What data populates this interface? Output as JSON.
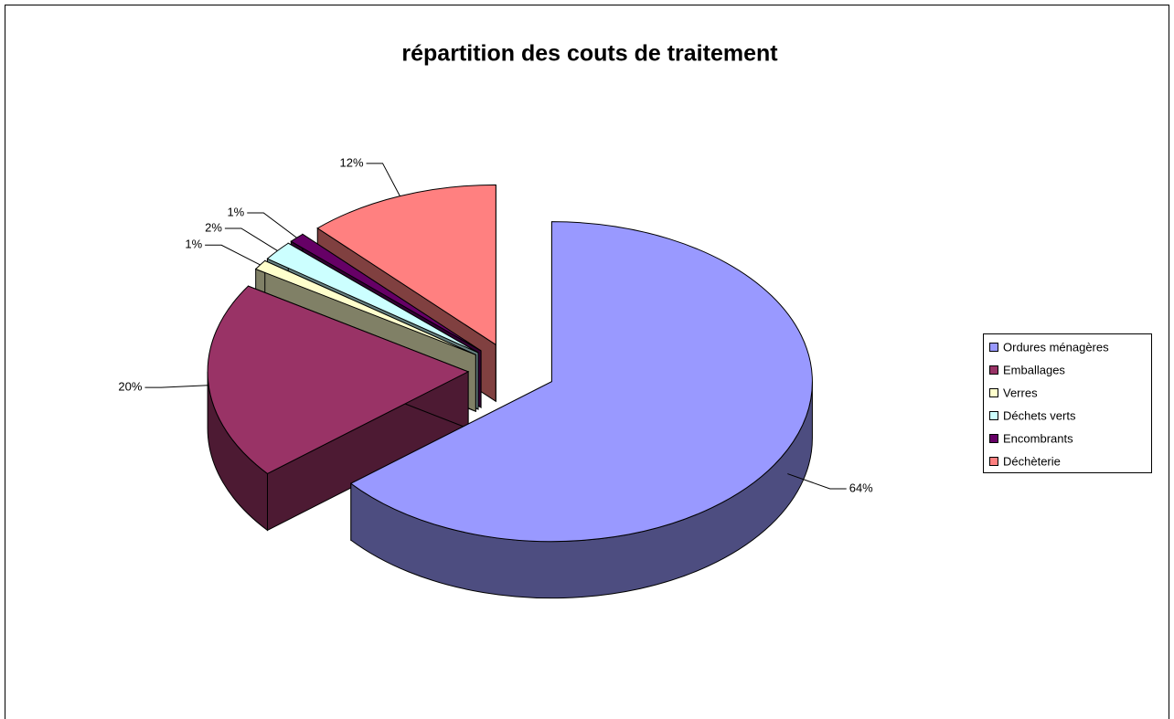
{
  "chart_data": {
    "type": "pie",
    "title": "répartition des couts de traitement",
    "categories": [
      "Ordures ménagères",
      "Emballages",
      "Verres",
      "Déchets verts",
      "Encombrants",
      "Déchèterie"
    ],
    "values": [
      64,
      20,
      1,
      2,
      1,
      12
    ],
    "value_labels": [
      "64%",
      "20%",
      "1%",
      "2%",
      "1%",
      "12%"
    ],
    "colors": [
      "#9999ff",
      "#993366",
      "#ffffcc",
      "#ccffff",
      "#660066",
      "#ff8080"
    ],
    "legend": "right"
  }
}
